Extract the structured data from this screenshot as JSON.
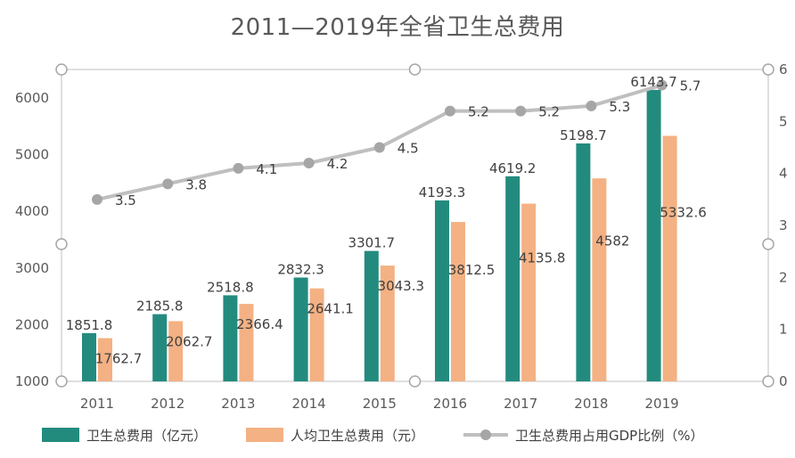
{
  "chart_data": {
    "type": "bar",
    "title": "2011—2019年全省卫生总费用",
    "categories": [
      "2011",
      "2012",
      "2013",
      "2014",
      "2015",
      "2016",
      "2017",
      "2018",
      "2019"
    ],
    "series": [
      {
        "name": "卫生总费用（亿元）",
        "kind": "bar",
        "axis": "left",
        "color": "#238B7E",
        "values": [
          1851.8,
          2185.8,
          2518.8,
          2832.3,
          3301.7,
          4193.3,
          4619.2,
          5198.7,
          6143.7
        ],
        "labels": [
          "1851.8",
          "2185.8",
          "2518.8",
          "2832.3",
          "3301.7",
          "4193.3",
          "4619.2",
          "5198.7",
          "6143.7"
        ]
      },
      {
        "name": "人均卫生总费用（元）",
        "kind": "bar",
        "axis": "left",
        "color": "#F4B183",
        "values": [
          1762.7,
          2062.7,
          2366.4,
          2641.1,
          3043.3,
          3812.5,
          4135.8,
          4582,
          5332.6
        ],
        "labels": [
          "1762.7",
          "2062.7",
          "2366.4",
          "2641.1",
          "3043.3",
          "3812.5",
          "4135.8",
          "4582",
          "5332.6"
        ]
      },
      {
        "name": "卫生总费用占用GDP比例（%）",
        "kind": "line",
        "axis": "right",
        "color": "#BFBFBF",
        "marker_color": "#A6A6A6",
        "values": [
          3.5,
          3.8,
          4.1,
          4.2,
          4.5,
          5.2,
          5.2,
          5.3,
          5.7
        ],
        "labels": [
          "3.5",
          "3.8",
          "4.1",
          "4.2",
          "4.5",
          "5.2",
          "5.2",
          "5.3",
          "5.7"
        ]
      }
    ],
    "y_left": {
      "min": 1000,
      "max": 6000,
      "ticks": [
        "1000",
        "2000",
        "3000",
        "4000",
        "5000",
        "6000"
      ]
    },
    "y_right": {
      "min": 0,
      "max": 6,
      "ticks": [
        "0",
        "1",
        "2",
        "3",
        "4",
        "5",
        "6"
      ]
    },
    "grid": false,
    "legend": "bottom"
  }
}
